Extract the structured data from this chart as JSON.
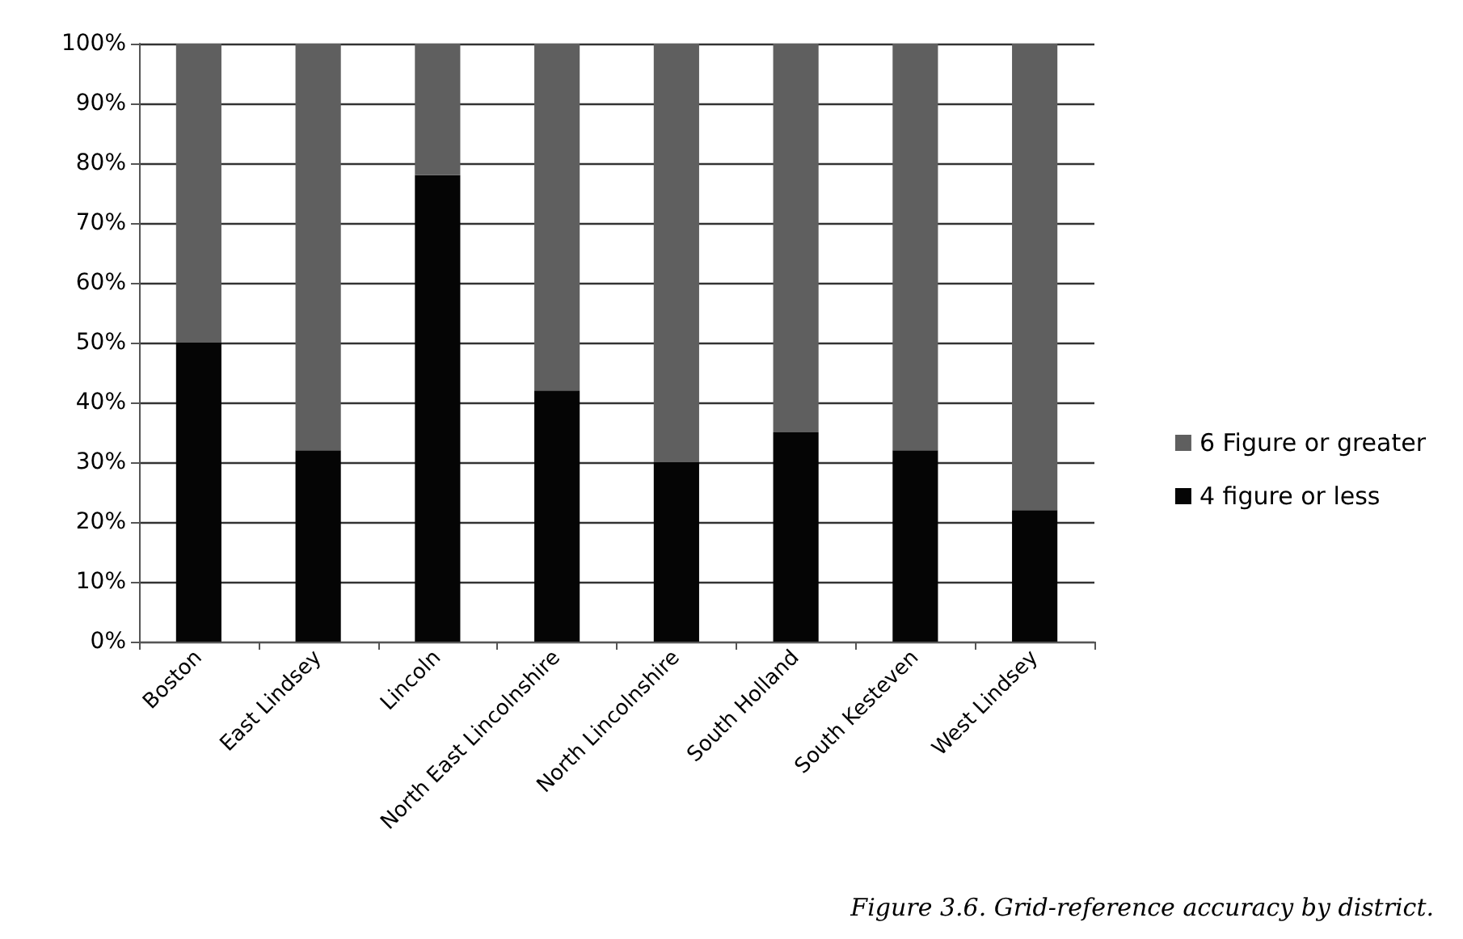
{
  "chart_data": {
    "type": "bar",
    "stacked": true,
    "categories": [
      "Boston",
      "East Lindsey",
      "Lincoln",
      "North East Lincolnshire",
      "North Lincolnshire",
      "South Holland",
      "South Kesteven",
      "West Lindsey"
    ],
    "series": [
      {
        "name": "4 figure or less",
        "color": "#050505",
        "values": [
          50,
          32,
          78,
          42,
          30,
          35,
          32,
          22
        ]
      },
      {
        "name": "6 Figure or greater",
        "color": "#5f5f5f",
        "values": [
          50,
          68,
          22,
          58,
          70,
          65,
          68,
          78
        ]
      }
    ],
    "ylim": [
      0,
      100
    ],
    "yticks": [
      {
        "value": 0,
        "label": "0%"
      },
      {
        "value": 10,
        "label": "10%"
      },
      {
        "value": 20,
        "label": "20%"
      },
      {
        "value": 30,
        "label": "30%"
      },
      {
        "value": 40,
        "label": "40%"
      },
      {
        "value": 50,
        "label": "50%"
      },
      {
        "value": 60,
        "label": "60%"
      },
      {
        "value": 70,
        "label": "70%"
      },
      {
        "value": 80,
        "label": "80%"
      },
      {
        "value": 90,
        "label": "90%"
      },
      {
        "value": 100,
        "label": "100%"
      }
    ],
    "grid": "y",
    "legend": "right",
    "annotations": [
      "Figure 3.6. Grid-reference accuracy by district."
    ]
  }
}
